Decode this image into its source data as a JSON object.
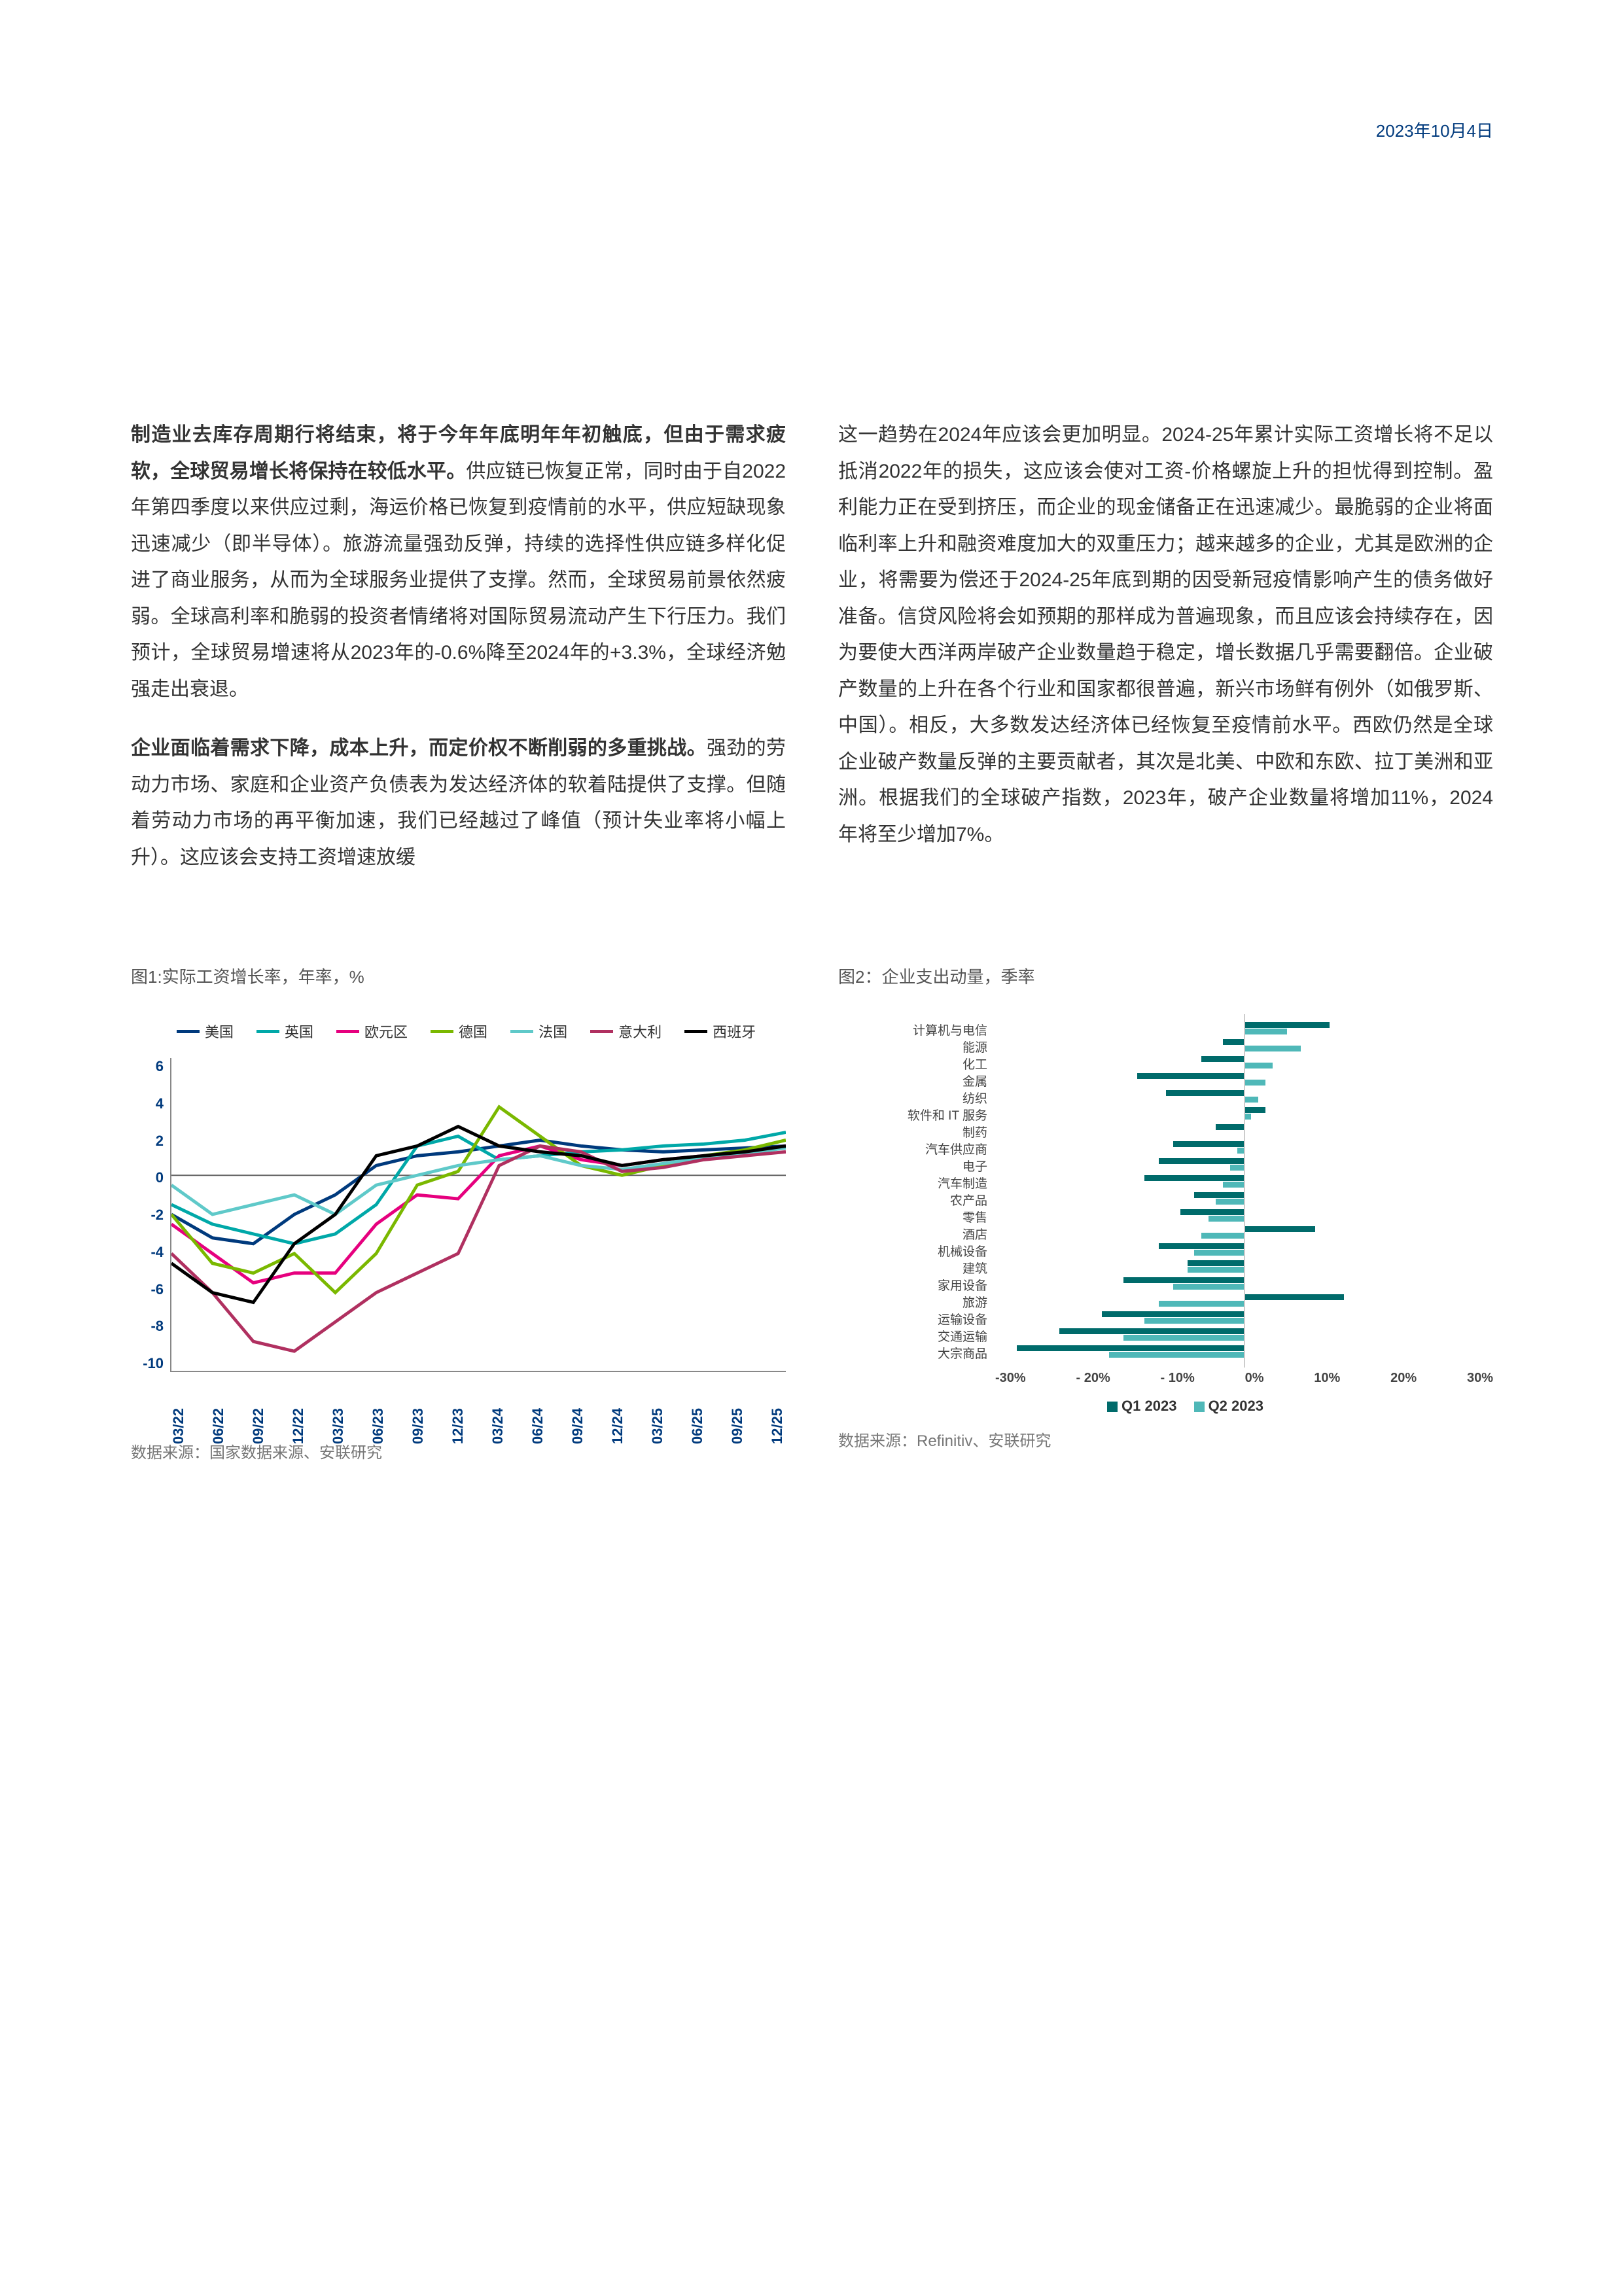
{
  "header": {
    "date": "2023年10月4日"
  },
  "body": {
    "p1_bold": "制造业去库存周期行将结束，将于今年年底明年年初触底，但由于需求疲软，全球贸易增长将保持在较低水平。",
    "p1_rest": "供应链已恢复正常，同时由于自2022年第四季度以来供应过剩，海运价格已恢复到疫情前的水平，供应短缺现象迅速减少（即半导体）。旅游流量强劲反弹，持续的选择性供应链多样化促进了商业服务，从而为全球服务业提供了支撑。然而，全球贸易前景依然疲弱。全球高利率和脆弱的投资者情绪将对国际贸易流动产生下行压力。我们预计，全球贸易增速将从2023年的-0.6%降至2024年的+3.3%，全球经济勉强走出衰退。",
    "p2_bold": "企业面临着需求下降，成本上升，而定价权不断削弱的多重挑战。",
    "p2_rest": "强劲的劳动力市场、家庭和企业资产负债表为发达经济体的软着陆提供了支撑。但随着劳动力市场的再平衡加速，我们已经越过了峰值（预计失业率将小幅上升）。这应该会支持工资增速放缓",
    "p3": "这一趋势在2024年应该会更加明显。2024-25年累计实际工资增长将不足以抵消2022年的损失，这应该会使对工资-价格螺旋上升的担忧得到控制。盈利能力正在受到挤压，而企业的现金储备正在迅速减少。最脆弱的企业将面临利率上升和融资难度加大的双重压力；越来越多的企业，尤其是欧洲的企业，将需要为偿还于2024-25年底到期的因受新冠疫情影响产生的债务做好准备。信贷风险将会如预期的那样成为普遍现象，而且应该会持续存在，因为要使大西洋两岸破产企业数量趋于稳定，增长数据几乎需要翻倍。企业破产数量的上升在各个行业和国家都很普遍，新兴市场鲜有例外（如俄罗斯、中国）。相反，大多数发达经济体已经恢复至疫情前水平。西欧仍然是全球企业破产数量反弹的主要贡献者，其次是北美、中欧和东欧、拉丁美洲和亚洲。根据我们的全球破产指数，2023年，破产企业数量将增加11%，2024年将至少增加7%。"
  },
  "fig1": {
    "title": "图1:实际工资增长率，年率，%",
    "source": "数据来源：国家数据来源、安联研究",
    "legend": [
      {
        "label": "美国",
        "color": "#003a7d"
      },
      {
        "label": "英国",
        "color": "#00a8a8"
      },
      {
        "label": "欧元区",
        "color": "#e6007e"
      },
      {
        "label": "德国",
        "color": "#7ab800"
      },
      {
        "label": "法国",
        "color": "#5fc9c9"
      },
      {
        "label": "意大利",
        "color": "#b03060"
      },
      {
        "label": "西班牙",
        "color": "#000000"
      }
    ],
    "y_ticks": [
      "6",
      "4",
      "2",
      "0",
      "-2",
      "-4",
      "-6",
      "-8",
      "-10"
    ],
    "x_ticks": [
      "03/22",
      "06/22",
      "09/22",
      "12/22",
      "03/23",
      "06/23",
      "09/23",
      "12/23",
      "03/24",
      "06/24",
      "09/24",
      "12/24",
      "03/25",
      "06/25",
      "09/25",
      "12/25"
    ],
    "ylim": [
      -10,
      6
    ],
    "series": {
      "美国": [
        -2.0,
        -3.2,
        -3.5,
        -2.0,
        -1.0,
        0.5,
        1.0,
        1.2,
        1.5,
        1.8,
        1.5,
        1.3,
        1.2,
        1.3,
        1.4,
        1.5
      ],
      "英国": [
        -1.5,
        -2.5,
        -3.0,
        -3.5,
        -3.0,
        -1.5,
        1.5,
        2.0,
        0.8,
        1.0,
        1.2,
        1.3,
        1.5,
        1.6,
        1.8,
        2.2
      ],
      "欧元区": [
        -2.5,
        -4.0,
        -5.5,
        -5.0,
        -5.0,
        -2.5,
        -1.0,
        -1.2,
        1.0,
        1.5,
        0.8,
        0.5,
        0.8,
        1.0,
        1.2,
        1.5
      ],
      "德国": [
        -2.0,
        -4.5,
        -5.0,
        -4.0,
        -6.0,
        -4.0,
        -0.5,
        0.2,
        3.5,
        2.0,
        0.5,
        0.0,
        0.5,
        1.0,
        1.3,
        1.8
      ],
      "法国": [
        -0.5,
        -2.0,
        -1.5,
        -1.0,
        -2.0,
        -0.5,
        0.0,
        0.5,
        0.8,
        1.0,
        0.5,
        0.3,
        0.6,
        0.9,
        1.1,
        1.4
      ],
      "意大利": [
        -4.0,
        -6.0,
        -8.5,
        -9.0,
        -7.5,
        -6.0,
        -5.0,
        -4.0,
        0.5,
        1.5,
        1.2,
        0.2,
        0.4,
        0.8,
        1.0,
        1.2
      ],
      "西班牙": [
        -4.5,
        -6.0,
        -6.5,
        -3.5,
        -2.0,
        1.0,
        1.5,
        2.5,
        1.5,
        1.2,
        1.0,
        0.5,
        0.8,
        1.0,
        1.2,
        1.5
      ]
    }
  },
  "fig2": {
    "title": "图2：企业支出动量，季率",
    "source": "数据来源：Refinitiv、安联研究",
    "x_ticks": [
      "-30%",
      "- 20%",
      "- 10%",
      "0%",
      "10%",
      "20%",
      "30%"
    ],
    "xlim": [
      -35,
      35
    ],
    "legend_q1": "Q1 2023",
    "legend_q2": "Q2 2023",
    "color_q1": "#006b6b",
    "color_q2": "#4fb8b8",
    "rows": [
      {
        "label": "计算机与电信",
        "q1": 12,
        "q2": 6
      },
      {
        "label": "能源",
        "q1": -3,
        "q2": 8
      },
      {
        "label": "化工",
        "q1": -6,
        "q2": 4
      },
      {
        "label": "金属",
        "q1": -15,
        "q2": 3
      },
      {
        "label": "纺织",
        "q1": -11,
        "q2": 2
      },
      {
        "label": "软件和 IT 服务",
        "q1": 3,
        "q2": 1
      },
      {
        "label": "制药",
        "q1": -4,
        "q2": 0
      },
      {
        "label": "汽车供应商",
        "q1": -10,
        "q2": -1
      },
      {
        "label": "电子",
        "q1": -12,
        "q2": -2
      },
      {
        "label": "汽车制造",
        "q1": -14,
        "q2": -3
      },
      {
        "label": "农产品",
        "q1": -7,
        "q2": -4
      },
      {
        "label": "零售",
        "q1": -9,
        "q2": -5
      },
      {
        "label": "酒店",
        "q1": 10,
        "q2": -6
      },
      {
        "label": "机械设备",
        "q1": -12,
        "q2": -7
      },
      {
        "label": "建筑",
        "q1": -8,
        "q2": -8
      },
      {
        "label": "家用设备",
        "q1": -17,
        "q2": -10
      },
      {
        "label": "旅游",
        "q1": 14,
        "q2": -12
      },
      {
        "label": "运输设备",
        "q1": -20,
        "q2": -14
      },
      {
        "label": "交通运输",
        "q1": -26,
        "q2": -17
      },
      {
        "label": "大宗商品",
        "q1": -32,
        "q2": -19
      }
    ]
  }
}
